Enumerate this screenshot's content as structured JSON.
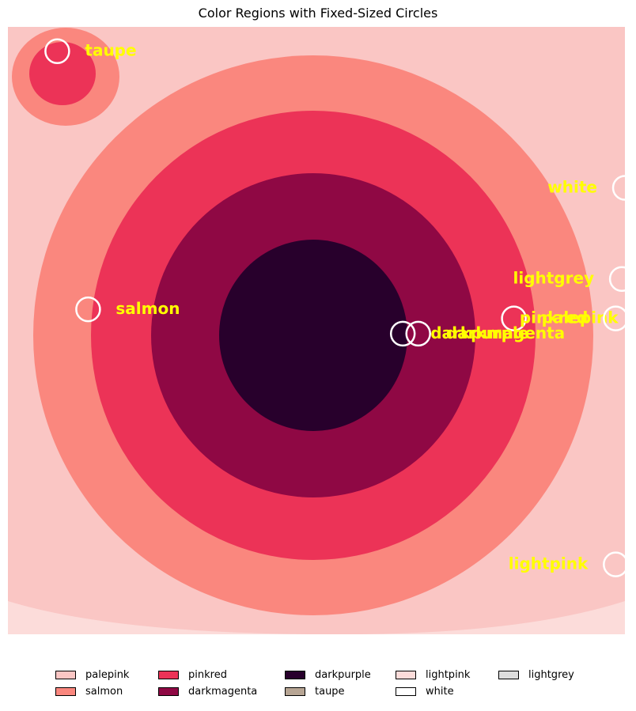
{
  "chart_data": {
    "type": "heatmap",
    "title": "Color Regions with Fixed-Sized Circles",
    "xlabel": "",
    "ylabel": "",
    "axes_visible": false,
    "grid": false,
    "legend_placement": "bottom",
    "regions": [
      {
        "name": "lightpink",
        "color": "#fcdcda",
        "ring": "outer"
      },
      {
        "name": "palepink",
        "color": "#fac6c4",
        "ring": 5
      },
      {
        "name": "salmon",
        "color": "#fa877e",
        "ring": 4
      },
      {
        "name": "pinkred",
        "color": "#ec3357",
        "ring": 3
      },
      {
        "name": "darkmagenta",
        "color": "#8f0844",
        "ring": 2
      },
      {
        "name": "darkpurple",
        "color": "#28002c",
        "ring": 1
      }
    ],
    "circle_color": "#ffffff",
    "label_color": "#ffff00",
    "circles": [
      {
        "label": "taupe",
        "x": 0.08,
        "y": 0.04
      },
      {
        "label": "white",
        "x": 1.0,
        "y": 0.265
      },
      {
        "label": "lightgrey",
        "x": 0.995,
        "y": 0.415
      },
      {
        "label": "salmon",
        "x": 0.13,
        "y": 0.465
      },
      {
        "label": "palepink",
        "x": 0.82,
        "y": 0.48
      },
      {
        "label": "pinkred",
        "x": 0.985,
        "y": 0.48
      },
      {
        "label": "darkpurple",
        "x": 0.64,
        "y": 0.505
      },
      {
        "label": "darkmagenta",
        "x": 0.665,
        "y": 0.505
      },
      {
        "label": "lightpink",
        "x": 0.985,
        "y": 0.885
      }
    ],
    "legend": [
      {
        "label": "palepink",
        "color": "#fac6c4"
      },
      {
        "label": "salmon",
        "color": "#fa877e"
      },
      {
        "label": "pinkred",
        "color": "#ec3357"
      },
      {
        "label": "darkmagenta",
        "color": "#8f0844"
      },
      {
        "label": "darkpurple",
        "color": "#28002c"
      },
      {
        "label": "taupe",
        "color": "#b7a594"
      },
      {
        "label": "lightpink",
        "color": "#fcdcda"
      },
      {
        "label": "white",
        "color": "#ffffff"
      },
      {
        "label": "lightgrey",
        "color": "#dddddd"
      }
    ]
  }
}
